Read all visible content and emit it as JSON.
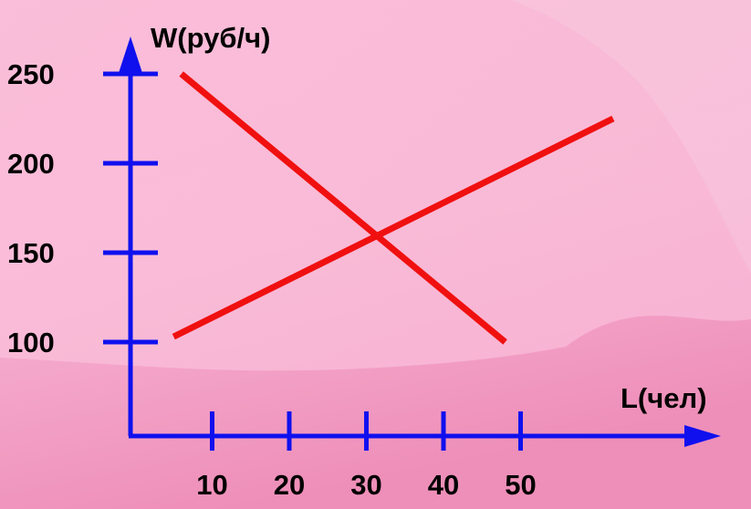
{
  "chart_data": {
    "type": "line",
    "xlabel": "L(чел)",
    "ylabel": "W(руб/ч)",
    "x_ticks": [
      10,
      20,
      30,
      40,
      50
    ],
    "y_ticks": [
      100,
      150,
      200,
      250
    ],
    "series": [
      {
        "x": [
          6,
          48
        ],
        "y": [
          250,
          100
        ]
      },
      {
        "x": [
          5,
          62
        ],
        "y": [
          103,
          225
        ]
      }
    ],
    "colors": {
      "axes": "#1010ee",
      "lines": "#f01010",
      "background": "#f7b3d4"
    },
    "grid": false
  }
}
